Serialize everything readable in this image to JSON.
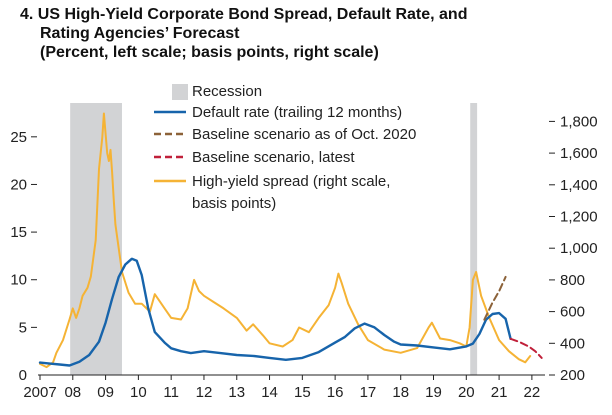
{
  "title": {
    "number": "4.",
    "line1": "US High-Yield Corporate Bond Spread, Default Rate, and",
    "line2": "Rating Agencies’ Forecast",
    "line3": "(Percent, left scale; basis points, right scale)"
  },
  "chart_data": {
    "type": "line",
    "title": "US High-Yield Corporate Bond Spread, Default Rate, and Rating Agencies’ Forecast",
    "subtitle": "(Percent, left scale; basis points, right scale)",
    "x_ticks": [
      "2007",
      "08",
      "09",
      "10",
      "11",
      "12",
      "13",
      "14",
      "15",
      "16",
      "17",
      "18",
      "19",
      "20",
      "21",
      "22"
    ],
    "xlim": [
      2007,
      2022.4
    ],
    "y_left": {
      "ticks": [
        0,
        5,
        10,
        15,
        20,
        25
      ],
      "ylim": [
        0,
        27.5
      ]
    },
    "y_right": {
      "ticks": [
        "200",
        "400",
        "600",
        "800",
        "1,000",
        "1,200",
        "1,400",
        "1,600",
        "1,800"
      ],
      "values": [
        200,
        400,
        600,
        800,
        1000,
        1200,
        1400,
        1600,
        1800
      ],
      "ylim": [
        200,
        1853
      ]
    },
    "legend": {
      "placement": "top-center",
      "entries": [
        "Recession",
        "Default rate (trailing 12 months)",
        "Baseline scenario as of Oct. 2020",
        "Baseline scenario, latest",
        "High-yield spread (right scale,",
        "basis points)"
      ]
    },
    "recessions": [
      {
        "start": 2007.92,
        "end": 2009.5
      },
      {
        "start": 2020.12,
        "end": 2020.33
      }
    ],
    "colors": {
      "recession": "#d2d3d5",
      "default_rate": "#1764ab",
      "baseline_oct2020": "#8c6239",
      "baseline_latest": "#c0203a",
      "hy_spread": "#f5b335"
    },
    "series": [
      {
        "name": "Default rate (trailing 12 months)",
        "axis": "left",
        "style": "solid",
        "x": [
          2007.0,
          2007.3,
          2007.6,
          2007.9,
          2008.2,
          2008.5,
          2008.8,
          2009.0,
          2009.2,
          2009.4,
          2009.6,
          2009.8,
          2009.95,
          2010.1,
          2010.3,
          2010.5,
          2010.8,
          2011.0,
          2011.3,
          2011.6,
          2012.0,
          2012.5,
          2013.0,
          2013.5,
          2014.0,
          2014.5,
          2015.0,
          2015.5,
          2016.0,
          2016.3,
          2016.6,
          2016.9,
          2017.2,
          2017.5,
          2017.8,
          2018.0,
          2018.5,
          2019.0,
          2019.5,
          2020.0,
          2020.2,
          2020.4,
          2020.6,
          2020.8,
          2021.0,
          2021.2,
          2021.35
        ],
        "y": [
          1.3,
          1.2,
          1.1,
          1.0,
          1.4,
          2.1,
          3.5,
          5.5,
          8.0,
          10.3,
          11.6,
          12.2,
          12.0,
          10.5,
          7.0,
          4.5,
          3.4,
          2.8,
          2.5,
          2.3,
          2.5,
          2.3,
          2.1,
          2.0,
          1.8,
          1.6,
          1.8,
          2.4,
          3.4,
          4.0,
          4.9,
          5.4,
          5.0,
          4.2,
          3.5,
          3.2,
          3.1,
          2.9,
          2.7,
          3.0,
          3.3,
          4.3,
          5.8,
          6.4,
          6.5,
          5.9,
          3.8
        ]
      },
      {
        "name": "Baseline scenario as of Oct. 2020",
        "axis": "left",
        "style": "dashed",
        "x": [
          2020.55,
          2020.8,
          2021.0,
          2021.2
        ],
        "y": [
          5.8,
          7.6,
          8.8,
          10.3
        ]
      },
      {
        "name": "Baseline scenario, latest",
        "axis": "left",
        "style": "dashed",
        "x": [
          2021.35,
          2021.6,
          2021.9,
          2022.1,
          2022.3
        ],
        "y": [
          3.8,
          3.5,
          3.0,
          2.5,
          1.8
        ]
      },
      {
        "name": "High-yield spread (right scale, basis points)",
        "axis": "right",
        "style": "solid",
        "x": [
          2007.0,
          2007.2,
          2007.4,
          2007.5,
          2007.7,
          2007.9,
          2008.0,
          2008.1,
          2008.2,
          2008.3,
          2008.45,
          2008.55,
          2008.7,
          2008.8,
          2008.9,
          2008.95,
          2009.0,
          2009.05,
          2009.1,
          2009.15,
          2009.2,
          2009.25,
          2009.3,
          2009.4,
          2009.5,
          2009.7,
          2009.9,
          2010.1,
          2010.35,
          2010.5,
          2010.6,
          2010.8,
          2011.0,
          2011.3,
          2011.5,
          2011.7,
          2011.85,
          2012.0,
          2012.3,
          2012.6,
          2013.0,
          2013.3,
          2013.5,
          2013.8,
          2014.0,
          2014.4,
          2014.7,
          2014.9,
          2015.2,
          2015.5,
          2015.8,
          2016.0,
          2016.1,
          2016.2,
          2016.4,
          2016.7,
          2017.0,
          2017.5,
          2018.0,
          2018.5,
          2018.85,
          2018.95,
          2019.2,
          2019.5,
          2019.8,
          2020.0,
          2020.1,
          2020.2,
          2020.3,
          2020.45,
          2020.7,
          2021.0,
          2021.3,
          2021.6,
          2021.8,
          2021.95
        ],
        "y": [
          270,
          250,
          280,
          340,
          420,
          550,
          620,
          560,
          620,
          700,
          750,
          820,
          1050,
          1500,
          1700,
          1850,
          1720,
          1600,
          1550,
          1620,
          1480,
          1300,
          1150,
          1000,
          850,
          720,
          650,
          650,
          600,
          710,
          680,
          620,
          560,
          550,
          620,
          800,
          730,
          700,
          660,
          620,
          560,
          480,
          520,
          450,
          400,
          380,
          420,
          500,
          470,
          560,
          640,
          750,
          840,
          780,
          650,
          520,
          420,
          360,
          340,
          370,
          500,
          530,
          430,
          420,
          400,
          380,
          500,
          800,
          850,
          700,
          560,
          420,
          350,
          300,
          280,
          320
        ]
      }
    ]
  }
}
